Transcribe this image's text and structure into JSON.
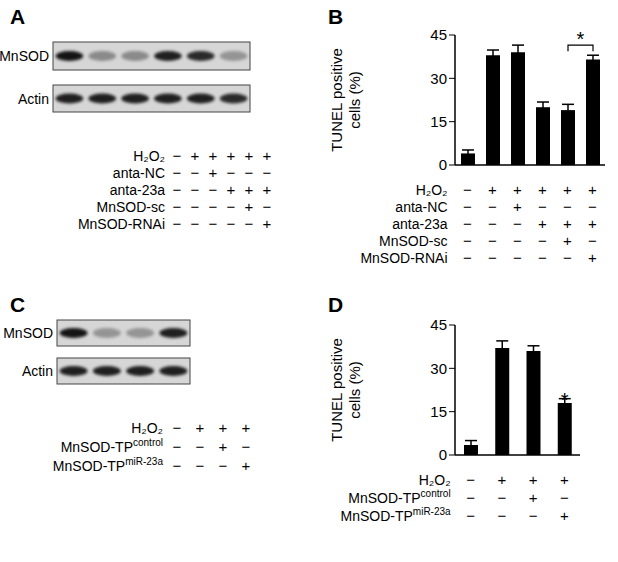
{
  "chart_data": [
    {
      "type": "bar",
      "panel": "B",
      "y_label": "TUNEL positive cells (%)",
      "categories": [
        null,
        null,
        null,
        null,
        null,
        null
      ],
      "values": [
        4,
        38,
        39,
        20,
        19,
        36.5
      ],
      "errors": [
        1.2,
        1.8,
        2.5,
        1.8,
        2,
        1.5
      ],
      "color": "#000000",
      "ylim": [
        0,
        45
      ],
      "yticks": [
        0,
        15,
        30,
        45
      ],
      "grid": false,
      "conditions": [
        {
          "name": "H₂O₂",
          "marks": [
            "−",
            "+",
            "+",
            "+",
            "+",
            "+"
          ]
        },
        {
          "name": "anta-NC",
          "marks": [
            "−",
            "−",
            "+",
            "−",
            "−",
            "−"
          ]
        },
        {
          "name": "anta-23a",
          "marks": [
            "−",
            "−",
            "−",
            "+",
            "+",
            "+"
          ]
        },
        {
          "name": "MnSOD-sc",
          "marks": [
            "−",
            "−",
            "−",
            "−",
            "+",
            "−"
          ]
        },
        {
          "name": "MnSOD-RNAi",
          "marks": [
            "−",
            "−",
            "−",
            "−",
            "−",
            "+"
          ]
        }
      ],
      "annotations": [
        {
          "text": "*",
          "categories": [
            4,
            5
          ]
        }
      ]
    },
    {
      "type": "bar",
      "panel": "D",
      "y_label": "TUNEL positive cells (%)",
      "categories": [
        null,
        null,
        null,
        null
      ],
      "values": [
        3.5,
        37,
        36,
        18
      ],
      "errors": [
        1.5,
        2.5,
        1.8,
        1.5
      ],
      "color": "#000000",
      "ylim": [
        0,
        45
      ],
      "yticks": [
        0,
        15,
        30,
        45
      ],
      "grid": false,
      "conditions": [
        {
          "name": "H₂O₂",
          "marks": [
            "−",
            "+",
            "+",
            "+"
          ]
        },
        {
          "name": "MnSOD-TP",
          "sup": "control",
          "marks": [
            "−",
            "−",
            "+",
            "−"
          ]
        },
        {
          "name": "MnSOD-TP",
          "sup": "miR-23a",
          "marks": [
            "−",
            "−",
            "−",
            "+"
          ]
        }
      ],
      "annotations": [
        {
          "text": "*",
          "categories": [
            3
          ]
        }
      ]
    }
  ],
  "blots": [
    {
      "panel": "A",
      "rows": [
        {
          "name": "MnSOD",
          "intensities": [
            0.9,
            0.35,
            0.35,
            0.85,
            0.8,
            0.3
          ]
        },
        {
          "name": "Actin",
          "intensities": [
            0.85,
            0.85,
            0.85,
            0.85,
            0.85,
            0.8
          ]
        }
      ],
      "conditions": [
        {
          "name": "H₂O₂",
          "marks": [
            "−",
            "+",
            "+",
            "+",
            "+",
            "+"
          ]
        },
        {
          "name": "anta-NC",
          "marks": [
            "−",
            "−",
            "+",
            "−",
            "−",
            "−"
          ]
        },
        {
          "name": "anta-23a",
          "marks": [
            "−",
            "−",
            "−",
            "+",
            "+",
            "+"
          ]
        },
        {
          "name": "MnSOD-sc",
          "marks": [
            "−",
            "−",
            "−",
            "−",
            "+",
            "−"
          ]
        },
        {
          "name": "MnSOD-RNAi",
          "marks": [
            "−",
            "−",
            "−",
            "−",
            "−",
            "+"
          ]
        }
      ]
    },
    {
      "panel": "C",
      "rows": [
        {
          "name": "MnSOD",
          "intensities": [
            0.9,
            0.3,
            0.3,
            0.85
          ]
        },
        {
          "name": "Actin",
          "intensities": [
            0.85,
            0.85,
            0.85,
            0.85
          ]
        }
      ],
      "conditions": [
        {
          "name": "H₂O₂",
          "marks": [
            "−",
            "+",
            "+",
            "+"
          ]
        },
        {
          "name": "MnSOD-TP",
          "sup": "control",
          "marks": [
            "−",
            "−",
            "+",
            "−"
          ]
        },
        {
          "name": "MnSOD-TP",
          "sup": "miR-23a",
          "marks": [
            "−",
            "−",
            "−",
            "+"
          ]
        }
      ]
    }
  ]
}
